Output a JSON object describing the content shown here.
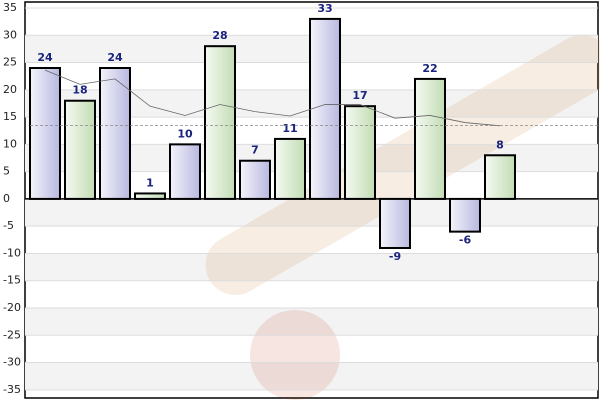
{
  "chart_data": {
    "type": "bar",
    "categories": [
      null,
      null,
      null,
      null,
      null,
      null,
      null,
      null,
      null,
      null,
      null,
      null,
      null,
      null
    ],
    "values": [
      24,
      18,
      24,
      1,
      10,
      28,
      7,
      11,
      33,
      17,
      -9,
      22,
      -6,
      8
    ],
    "colors": [
      "#c8c8ea",
      "#d2e6c8"
    ],
    "trend": [
      23.6,
      21,
      22,
      17,
      15.3,
      17.3,
      16,
      15.2,
      17.3,
      17.3,
      14.8,
      15.3,
      14,
      13.4
    ],
    "average": 13.43,
    "ylim": [
      -36.5,
      36.1
    ],
    "yticks": [
      -35,
      -30,
      -25,
      -20,
      -15,
      -10,
      -5,
      0,
      5,
      10,
      15,
      20,
      25,
      30,
      35
    ],
    "grid": true
  }
}
